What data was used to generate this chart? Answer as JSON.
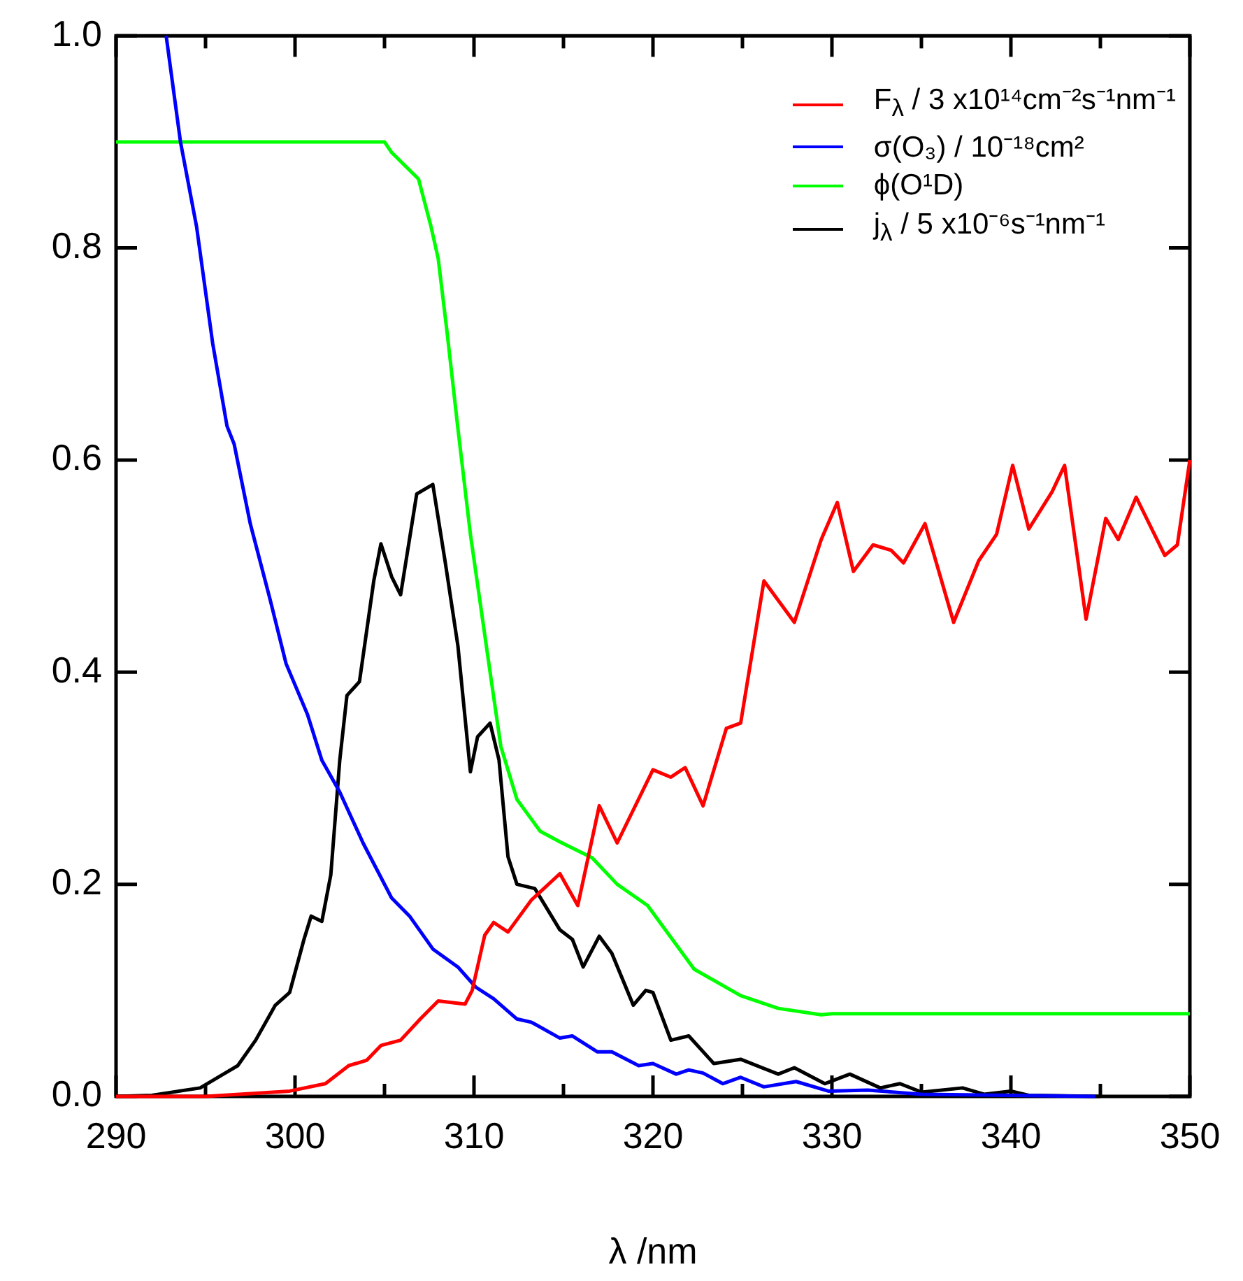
{
  "chart_data": {
    "type": "line",
    "xlabel": "λ /nm",
    "legend": "top right",
    "line_style": "solid",
    "xlim": [
      290,
      350
    ],
    "ylim": [
      0,
      1
    ],
    "xticks": [
      290,
      {
        "value": 295,
        "label": null
      },
      300,
      {
        "value": 305,
        "label": null
      },
      310,
      {
        "value": 315,
        "label": null
      },
      320,
      {
        "value": 325,
        "label": null
      },
      330,
      {
        "value": 335,
        "label": null
      },
      340,
      {
        "value": 345,
        "label": null
      },
      350
    ],
    "yticks": [
      {
        "value": 0,
        "label": "0.0"
      },
      0.2,
      0.4,
      0.6,
      0.8,
      {
        "value": 1,
        "label": "1.0"
      }
    ],
    "series": [
      {
        "name": "F$_{λ}$ / 3 x10¹⁴cm⁻²s⁻¹nm⁻¹",
        "color": "#ff0000",
        "x": [
          290,
          295,
          299.7,
          301.7,
          303,
          304,
          304.8,
          305.9,
          307,
          308,
          309.5,
          309.9,
          310.6,
          311.1,
          311.9,
          313.2,
          314.8,
          315.8,
          317,
          318,
          320,
          321,
          321.8,
          322.8,
          324.1,
          324.9,
          326.2,
          327.9,
          329.4,
          330.3,
          331.2,
          332.3,
          333.3,
          334,
          335.2,
          336.8,
          338.2,
          339.2,
          340.1,
          341,
          342.3,
          343,
          344.2,
          345.3,
          346,
          347,
          348.6,
          349.3,
          350
        ],
        "values": [
          0,
          0,
          0.005,
          0.012,
          0.029,
          0.034,
          0.048,
          0.053,
          0.073,
          0.09,
          0.087,
          0.1,
          0.152,
          0.164,
          0.155,
          0.185,
          0.21,
          0.18,
          0.274,
          0.239,
          0.308,
          0.301,
          0.31,
          0.274,
          0.347,
          0.352,
          0.486,
          0.447,
          0.525,
          0.56,
          0.495,
          0.52,
          0.515,
          0.503,
          0.54,
          0.447,
          0.505,
          0.53,
          0.595,
          0.535,
          0.57,
          0.595,
          0.45,
          0.545,
          0.525,
          0.565,
          0.51,
          0.52,
          0.6
        ]
      },
      {
        "name": "σ(O₃) / 10⁻¹⁸cm²",
        "color": "#0000ff",
        "x": [
          292.8,
          293.6,
          294.5,
          295.4,
          296.2,
          296.6,
          297.5,
          298.6,
          299.5,
          300.7,
          301.5,
          302.5,
          303.8,
          305.4,
          306.4,
          307.7,
          309.1,
          310.1,
          311.1,
          312.4,
          313.2,
          314.8,
          315.5,
          316.9,
          317.7,
          319.2,
          320,
          321.3,
          322,
          322.8,
          323.9,
          324.9,
          326.2,
          328,
          329.8,
          332,
          335,
          340,
          344.7
        ],
        "values": [
          1,
          0.9,
          0.82,
          0.71,
          0.632,
          0.615,
          0.54,
          0.469,
          0.408,
          0.36,
          0.317,
          0.287,
          0.239,
          0.187,
          0.17,
          0.139,
          0.122,
          0.103,
          0.092,
          0.073,
          0.07,
          0.055,
          0.057,
          0.042,
          0.042,
          0.029,
          0.031,
          0.021,
          0.025,
          0.022,
          0.012,
          0.018,
          0.009,
          0.014,
          0.005,
          0.006,
          0.002,
          0.001,
          0
        ]
      },
      {
        "name": "ϕ(O¹D)",
        "color": "#00ff00",
        "x": [
          290,
          305,
          305.4,
          306.9,
          307.6,
          308,
          308.5,
          309.1,
          309.8,
          310.9,
          311.5,
          312.4,
          313.7,
          314.8,
          316.6,
          318,
          319.7,
          321,
          322.3,
          324.9,
          327,
          329.4,
          330,
          350
        ],
        "values": [
          0.9,
          0.9,
          0.89,
          0.865,
          0.82,
          0.79,
          0.72,
          0.63,
          0.53,
          0.4,
          0.33,
          0.28,
          0.25,
          0.24,
          0.225,
          0.2,
          0.18,
          0.15,
          0.12,
          0.095,
          0.083,
          0.077,
          0.078,
          0.078
        ]
      },
      {
        "name": "j$_{λ}$ / 5 x10⁻⁶s⁻¹nm⁻¹",
        "color": "#000000",
        "x": [
          290,
          292,
          294.7,
          296,
          296.8,
          297.8,
          298.9,
          299.7,
          300.5,
          300.9,
          301.5,
          302,
          302.5,
          302.9,
          303.6,
          304.4,
          304.8,
          305.4,
          305.9,
          306.8,
          307.7,
          308.4,
          309.1,
          309.8,
          310.2,
          310.9,
          311.4,
          311.9,
          312.4,
          313.4,
          314.8,
          315.5,
          316.1,
          317,
          317.7,
          318.9,
          319.6,
          320,
          321,
          322,
          323.4,
          324.9,
          327,
          327.9,
          329.6,
          331,
          332.7,
          333.8,
          335,
          337.3,
          338.5,
          340,
          341,
          345
        ],
        "values": [
          0,
          0.001,
          0.008,
          0.021,
          0.029,
          0.053,
          0.086,
          0.098,
          0.148,
          0.17,
          0.165,
          0.209,
          0.317,
          0.378,
          0.391,
          0.486,
          0.521,
          0.49,
          0.473,
          0.568,
          0.577,
          0.503,
          0.425,
          0.306,
          0.339,
          0.352,
          0.317,
          0.226,
          0.2,
          0.196,
          0.157,
          0.148,
          0.122,
          0.151,
          0.135,
          0.086,
          0.1,
          0.098,
          0.053,
          0.057,
          0.031,
          0.035,
          0.021,
          0.027,
          0.012,
          0.021,
          0.008,
          0.012,
          0.004,
          0.008,
          0.002,
          0.005,
          0.001,
          0
        ]
      }
    ]
  }
}
